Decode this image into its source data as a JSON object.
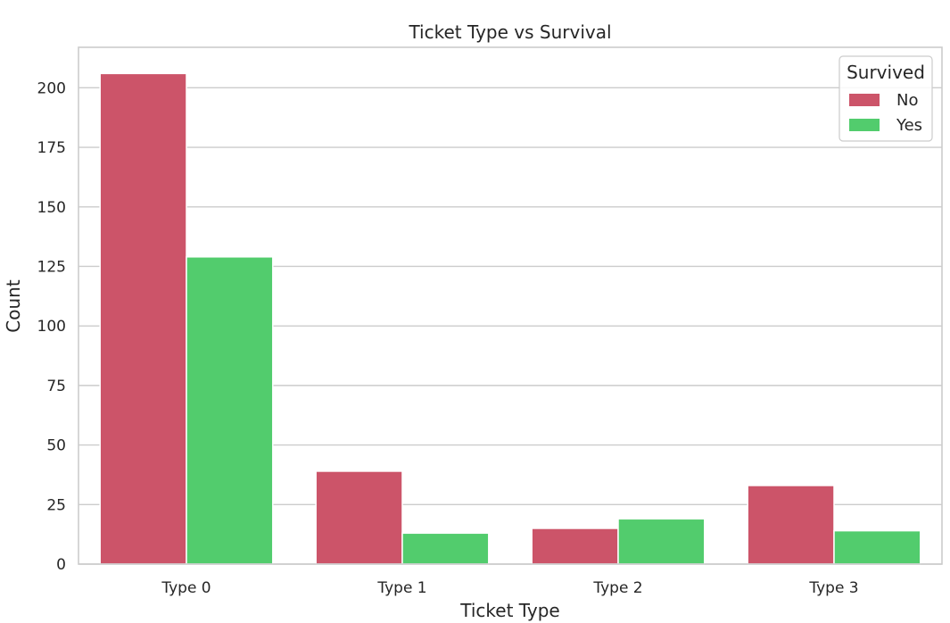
{
  "chart_data": {
    "type": "bar",
    "title": "Ticket Type vs Survival",
    "xlabel": "Ticket Type",
    "ylabel": "Count",
    "categories": [
      "Type 0",
      "Type 1",
      "Type 2",
      "Type 3"
    ],
    "series": [
      {
        "name": "No",
        "color": "#cc5469",
        "values": [
          206,
          39,
          15,
          33
        ]
      },
      {
        "name": "Yes",
        "color": "#52cc6d",
        "values": [
          129,
          13,
          19,
          14
        ]
      }
    ],
    "ylim": [
      0,
      217
    ],
    "yticks": [
      0,
      25,
      50,
      75,
      100,
      125,
      150,
      175,
      200
    ],
    "grid": true,
    "legend": {
      "title": "Survived",
      "position": "top-right"
    }
  }
}
